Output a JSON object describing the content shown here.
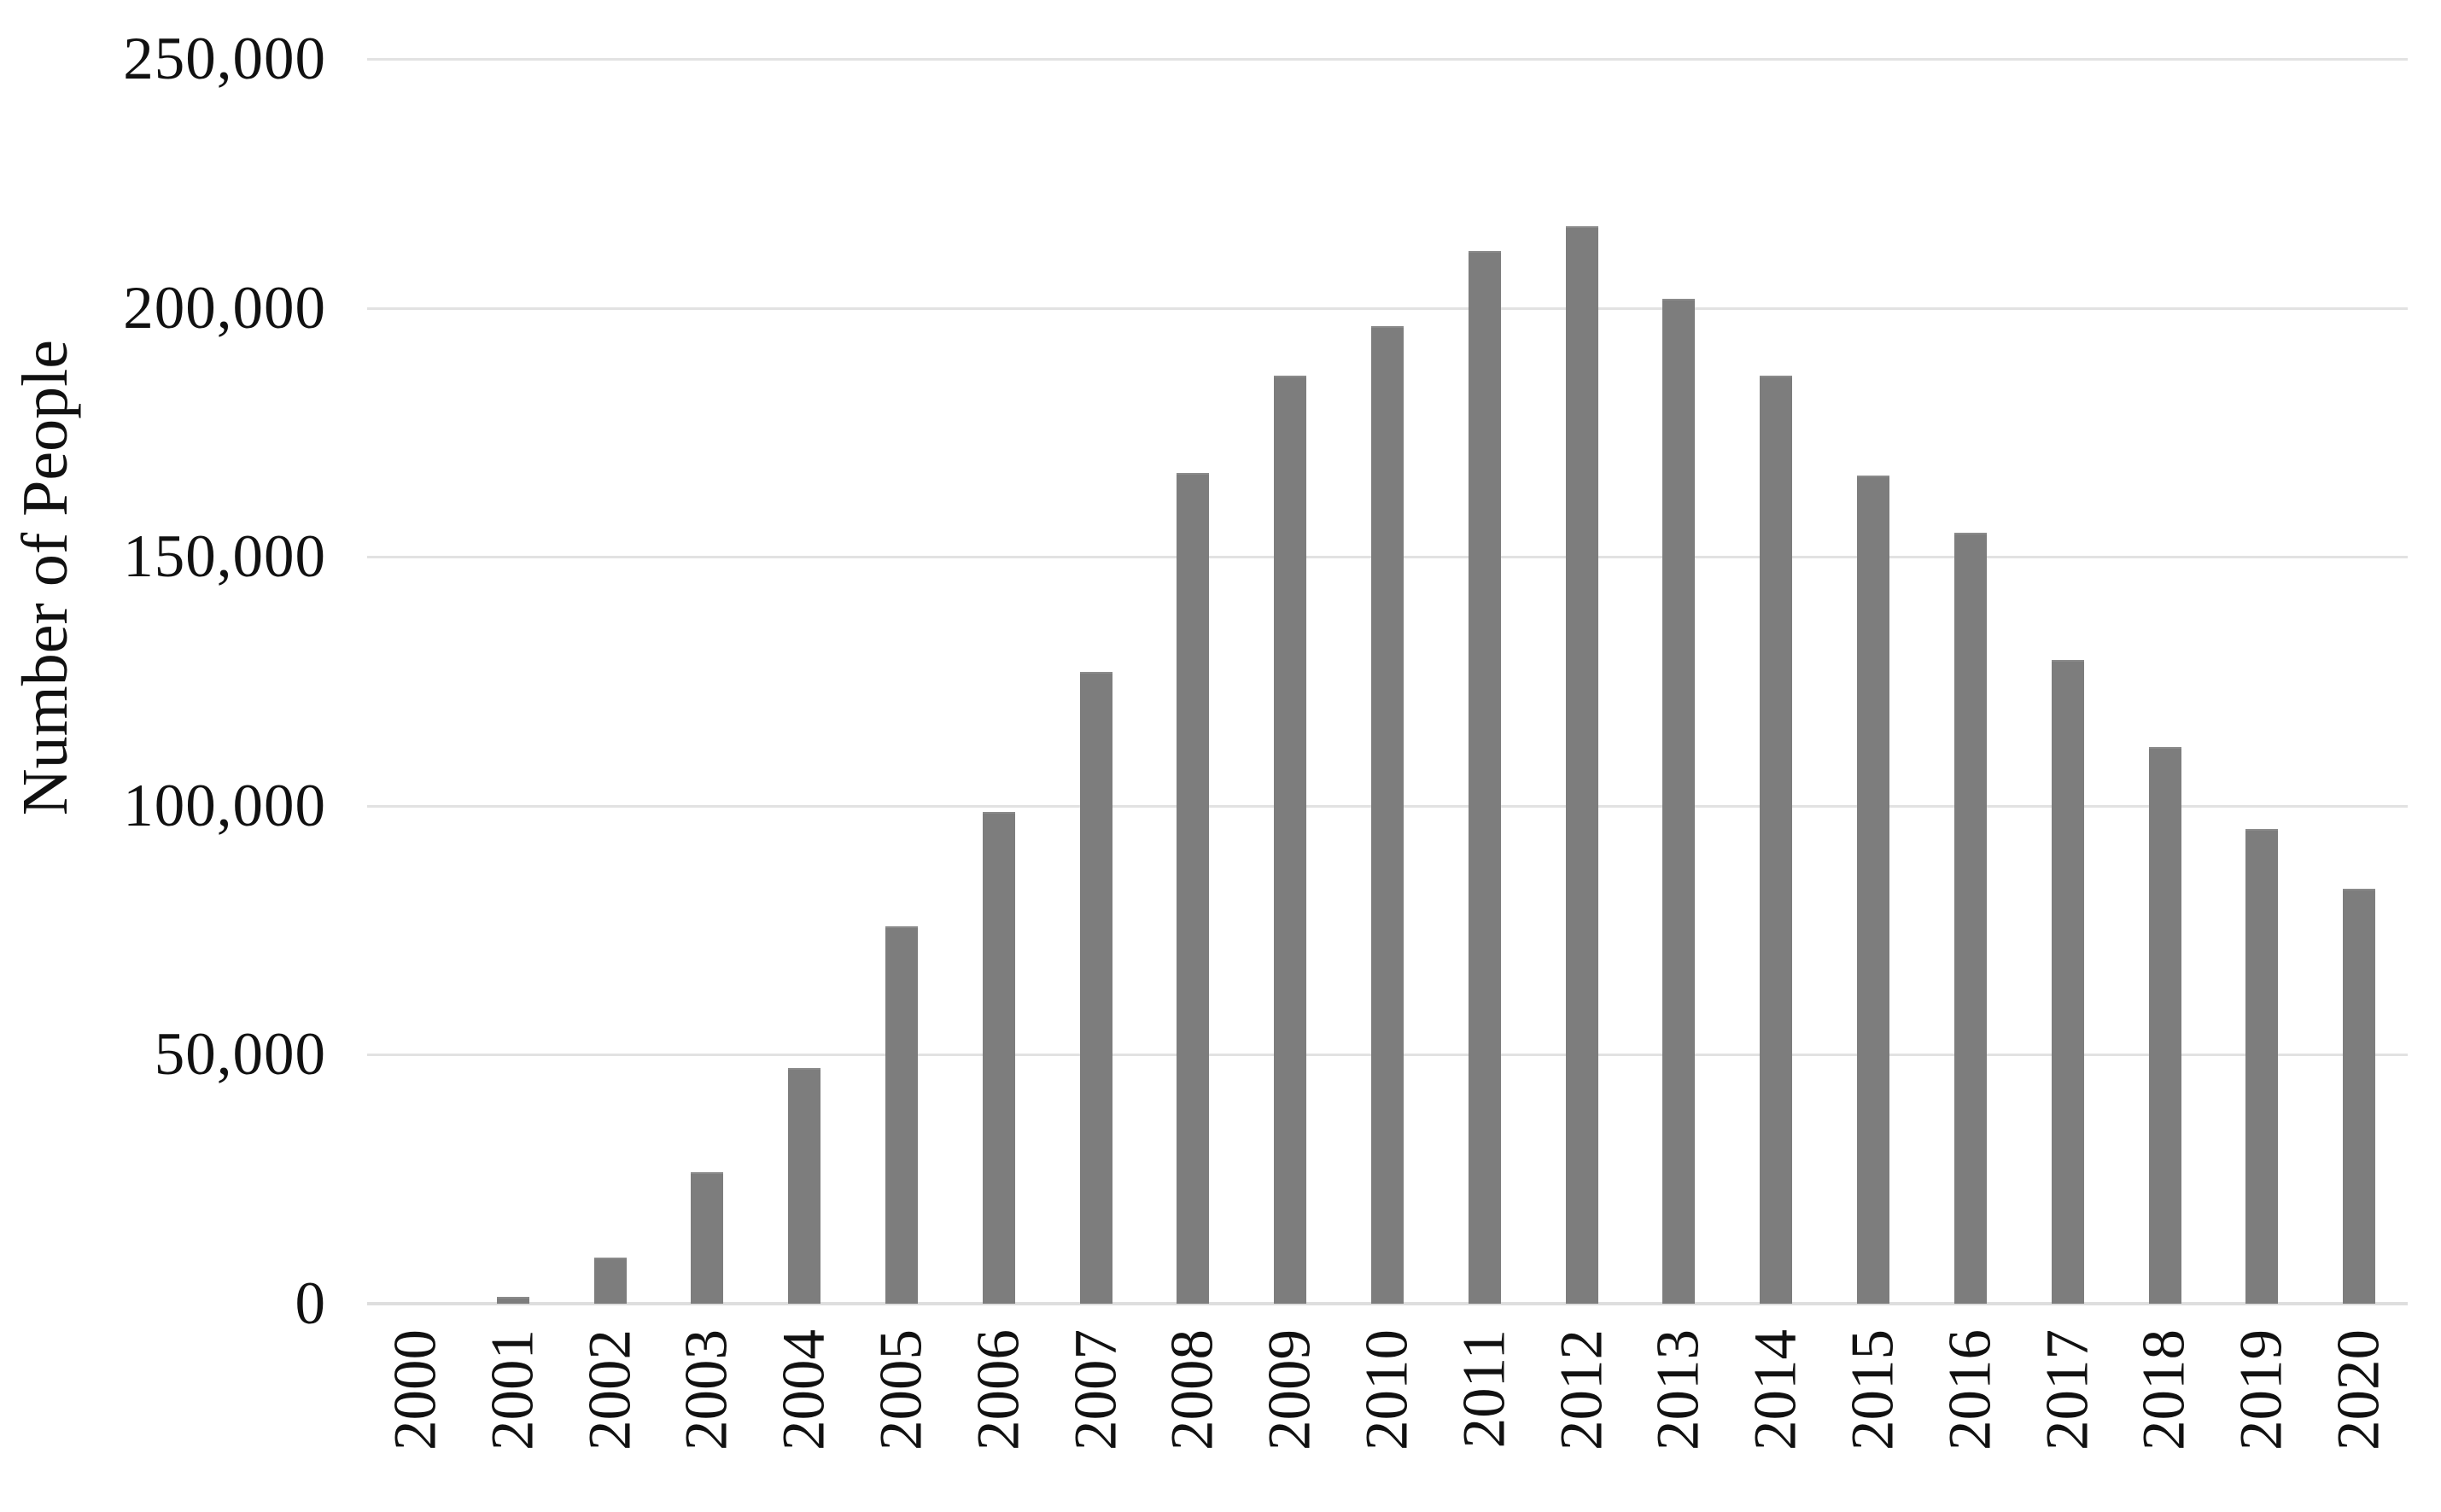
{
  "chart_data": {
    "type": "bar",
    "title": "",
    "xlabel": "",
    "ylabel": "Number of People",
    "categories": [
      "2000",
      "2001",
      "2002",
      "2003",
      "2004",
      "2005",
      "2006",
      "2007",
      "2008",
      "2009",
      "2010",
      "2011",
      "2012",
      "2013",
      "2014",
      "2015",
      "2016",
      "2017",
      "2018",
      "2019",
      "2020"
    ],
    "values": [
      0,
      1000,
      9000,
      26000,
      47000,
      75500,
      98500,
      126500,
      166500,
      186000,
      196000,
      211000,
      216000,
      201500,
      186000,
      166000,
      154500,
      129000,
      111500,
      95000,
      83000
    ],
    "ylim": [
      0,
      250000
    ],
    "ytick_interval": 50000,
    "ytick_labels": [
      "0",
      "50,000",
      "100,000",
      "150,000",
      "200,000",
      "250,000"
    ],
    "grid": "horizontal",
    "legend_position": "none",
    "bar_color": "#7d7d7d",
    "gridline_color": "#e2e2e2",
    "axis_line_color": "#dedede",
    "text_color": "#111111"
  }
}
